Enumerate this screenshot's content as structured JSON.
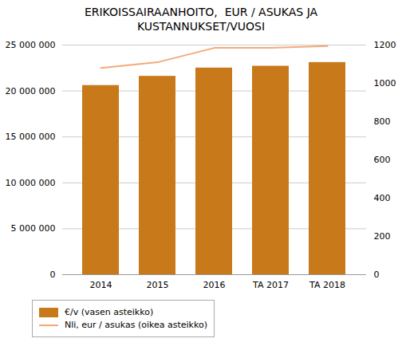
{
  "chart_data": {
    "type": "bar",
    "title": "ERIKOISSAIRAANHOITO,  EUR / ASUKAS JA\nKUSTANNUKSET/VUOSI",
    "categories": [
      "2014",
      "2015",
      "2016",
      "TA 2017",
      "TA 2018"
    ],
    "series": [
      {
        "name": "€/v (vasen asteikko)",
        "type": "bar",
        "color": "#C8791A",
        "values": [
          20600000,
          21600000,
          22500000,
          22700000,
          23100000
        ]
      },
      {
        "name": "Nli, eur / asukas (oikea asteikko)",
        "type": "line",
        "color": "#F4A97A",
        "axis": "y2",
        "values": [
          1080,
          1110,
          1185,
          1185,
          1195
        ]
      }
    ],
    "ylim": [
      0,
      25000000
    ],
    "yticks": [
      0,
      {
        "value": 5000000,
        "label": "5 000 000"
      },
      {
        "value": 10000000,
        "label": "10 000 000"
      },
      {
        "value": 15000000,
        "label": "15 000 000"
      },
      {
        "value": 20000000,
        "label": "20 000 000"
      },
      {
        "value": 25000000,
        "label": "25 000 000"
      }
    ],
    "y2lim": [
      0,
      1200
    ],
    "y2ticks": [
      0,
      200,
      400,
      600,
      800,
      1000,
      1200
    ],
    "grid": true,
    "legend": "lower left"
  }
}
